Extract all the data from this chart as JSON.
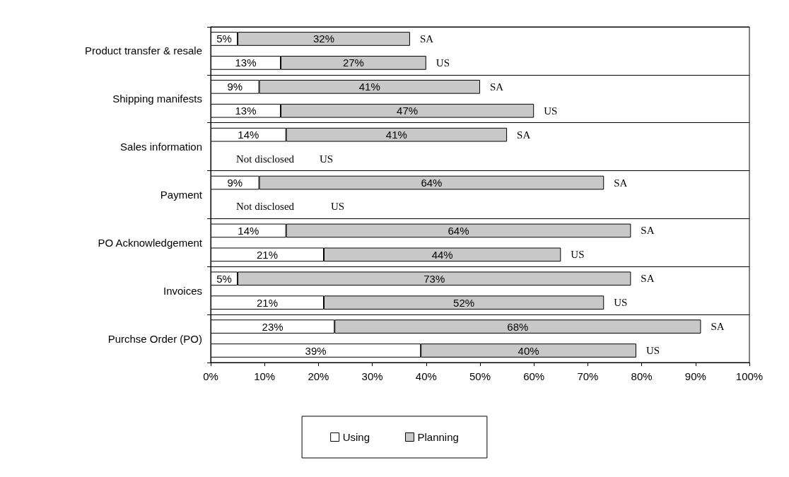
{
  "chart_data": {
    "type": "bar",
    "orientation": "horizontal",
    "stacked": true,
    "categories": [
      null,
      "Product transfer & resale",
      null,
      "Shipping manifests",
      null,
      "Sales information",
      null,
      "Payment",
      null,
      "PO Acknowledgement",
      null,
      "Invoices",
      null,
      "Purchse Order (PO)"
    ],
    "series": [
      {
        "name": "Using",
        "color": "#ffffff",
        "values": [
          5,
          13,
          9,
          13,
          14,
          null,
          9,
          null,
          14,
          21,
          5,
          21,
          23,
          39
        ],
        "value_labels": [
          "5%",
          "13%",
          "9%",
          "13%",
          "14%",
          null,
          "9%",
          null,
          "14%",
          "21%",
          "5%",
          "21%",
          "23%",
          "39%"
        ]
      },
      {
        "name": "Planning",
        "color": "#c8c8c8",
        "values": [
          32,
          27,
          41,
          47,
          41,
          null,
          64,
          null,
          64,
          44,
          73,
          52,
          68,
          40
        ],
        "value_labels": [
          "32%",
          "27%",
          "41%",
          "47%",
          "41%",
          null,
          "64%",
          null,
          "64%",
          "44%",
          "73%",
          "52%",
          "68%",
          "40%"
        ]
      }
    ],
    "xlim": [
      0,
      100
    ],
    "xticks": [
      {
        "value": 0,
        "label": "0%"
      },
      {
        "value": 10,
        "label": "10%"
      },
      {
        "value": 20,
        "label": "20%"
      },
      {
        "value": 30,
        "label": "30%"
      },
      {
        "value": 40,
        "label": "40%"
      },
      {
        "value": 50,
        "label": "50%"
      },
      {
        "value": 60,
        "label": "60%"
      },
      {
        "value": 70,
        "label": "70%"
      },
      {
        "value": 80,
        "label": "80%"
      },
      {
        "value": 90,
        "label": "90%"
      },
      {
        "value": 100,
        "label": "100%"
      }
    ],
    "annotations": [
      "SA",
      "US",
      "SA",
      "US",
      "SA",
      "Not disclosed",
      "US",
      "SA",
      "Not disclosed",
      "US",
      "SA",
      "US",
      "SA",
      "US",
      "SA",
      "US"
    ],
    "grid": "y",
    "legend": "bottom"
  }
}
